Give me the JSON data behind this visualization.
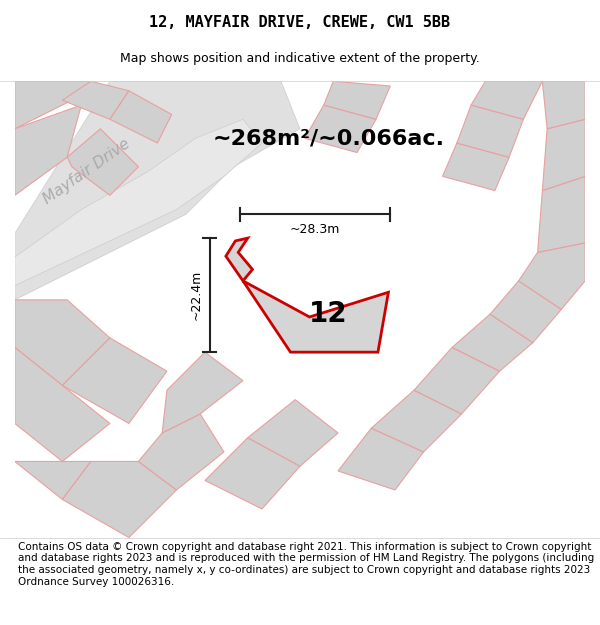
{
  "title": "12, MAYFAIR DRIVE, CREWE, CW1 5BB",
  "subtitle": "Map shows position and indicative extent of the property.",
  "footer": "Contains OS data © Crown copyright and database right 2021. This information is subject to Crown copyright and database rights 2023 and is reproduced with the permission of HM Land Registry. The polygons (including the associated geometry, namely x, y co-ordinates) are subject to Crown copyright and database rights 2023 Ordnance Survey 100026316.",
  "area_label": "~268m²/~0.066ac.",
  "width_label": "~28.3m",
  "height_label": "~22.4m",
  "plot_number": "12",
  "bg_color": "#f5f5f5",
  "map_bg": "#ffffff",
  "plot_outline_color": "#cc0000",
  "plot_fill_color": "#d8d8d8",
  "road_fill": "#e0e0e0",
  "neighbor_fill": "#d0d0d0",
  "neighbor_outline": "#e8a0a0",
  "road_label": "Mayfair Drive",
  "dim_line_color": "#222222",
  "title_fontsize": 11,
  "subtitle_fontsize": 9,
  "footer_fontsize": 7.5,
  "area_fontsize": 16,
  "plot_number_fontsize": 20,
  "dim_fontsize": 9,
  "road_label_fontsize": 11
}
